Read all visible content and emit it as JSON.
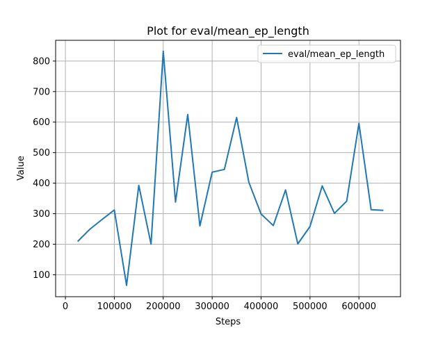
{
  "chart_data": {
    "type": "line",
    "title": "Plot for eval/mean_ep_length",
    "xlabel": "Steps",
    "ylabel": "Value",
    "xlim": [
      -20000,
      685000
    ],
    "ylim": [
      28,
      868
    ],
    "xticks": [
      0,
      100000,
      200000,
      300000,
      400000,
      500000,
      600000
    ],
    "xtick_labels": [
      "0",
      "100000",
      "200000",
      "300000",
      "400000",
      "500000",
      "600000"
    ],
    "yticks": [
      100,
      200,
      300,
      400,
      500,
      600,
      700,
      800
    ],
    "ytick_labels": [
      "100",
      "200",
      "300",
      "400",
      "500",
      "600",
      "700",
      "800"
    ],
    "grid": true,
    "legend_position": "top-right",
    "series": [
      {
        "name": "eval/mean_ep_length",
        "color": "#1f77b4",
        "x": [
          25000,
          50000,
          75000,
          100000,
          125000,
          150000,
          175000,
          200000,
          225000,
          250000,
          275000,
          300000,
          325000,
          350000,
          375000,
          400000,
          425000,
          450000,
          475000,
          500000,
          525000,
          550000,
          575000,
          600000,
          625000,
          650000
        ],
        "y": [
          209,
          249,
          281,
          312,
          65,
          393,
          200,
          832,
          338,
          625,
          260,
          436,
          445,
          615,
          403,
          299,
          261,
          378,
          201,
          258,
          391,
          301,
          341,
          596,
          313,
          311
        ]
      }
    ]
  }
}
